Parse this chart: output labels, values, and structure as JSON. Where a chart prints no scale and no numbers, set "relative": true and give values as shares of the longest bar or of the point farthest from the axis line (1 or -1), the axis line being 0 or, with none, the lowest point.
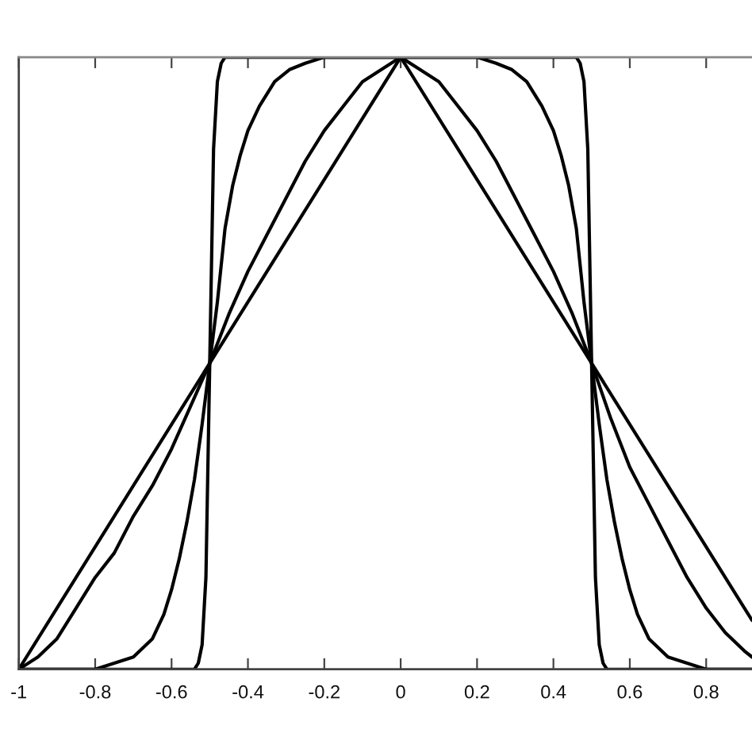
{
  "chart_data": {
    "type": "line",
    "relative": true,
    "xlim": [
      -1,
      0.92
    ],
    "xticks": [
      -1,
      -0.8,
      -0.6,
      -0.4,
      -0.2,
      0,
      0.2,
      0.4,
      0.6,
      0.8
    ],
    "grid": false,
    "line_style": "solid",
    "series": [
      {
        "color": "#000000",
        "x": [
          -1,
          -0.5,
          0,
          0.5,
          0.92
        ],
        "values": [
          0,
          0.5,
          1,
          0.5,
          0.08
        ]
      },
      {
        "color": "#000000",
        "x": [
          -1,
          -0.95,
          -0.9,
          -0.85,
          -0.8,
          -0.75,
          -0.7,
          -0.65,
          -0.6,
          -0.55,
          -0.5,
          -0.45,
          -0.4,
          -0.35,
          -0.3,
          -0.25,
          -0.2,
          -0.15,
          -0.1,
          -0.05,
          0,
          0.05,
          0.1,
          0.15,
          0.2,
          0.25,
          0.3,
          0.35,
          0.4,
          0.45,
          0.5,
          0.55,
          0.6,
          0.65,
          0.7,
          0.75,
          0.8,
          0.85,
          0.9,
          0.92
        ],
        "values": [
          0,
          0.02,
          0.05,
          0.1,
          0.15,
          0.19,
          0.25,
          0.3,
          0.36,
          0.43,
          0.5,
          0.58,
          0.65,
          0.71,
          0.77,
          0.83,
          0.88,
          0.92,
          0.96,
          0.98,
          1,
          0.98,
          0.96,
          0.92,
          0.88,
          0.83,
          0.77,
          0.71,
          0.65,
          0.58,
          0.5,
          0.41,
          0.33,
          0.27,
          0.21,
          0.15,
          0.1,
          0.06,
          0.03,
          0.02
        ]
      },
      {
        "color": "#000000",
        "x": [
          -1,
          -0.8,
          -0.75,
          -0.7,
          -0.65,
          -0.62,
          -0.6,
          -0.58,
          -0.56,
          -0.54,
          -0.52,
          -0.5,
          -0.48,
          -0.46,
          -0.44,
          -0.42,
          -0.4,
          -0.37,
          -0.33,
          -0.29,
          -0.25,
          -0.2,
          0.2,
          0.25,
          0.29,
          0.33,
          0.37,
          0.4,
          0.42,
          0.44,
          0.46,
          0.48,
          0.5,
          0.52,
          0.54,
          0.56,
          0.58,
          0.6,
          0.62,
          0.65,
          0.7,
          0.75,
          0.8,
          0.92
        ],
        "values": [
          0,
          0,
          0.01,
          0.02,
          0.05,
          0.09,
          0.13,
          0.18,
          0.24,
          0.31,
          0.4,
          0.5,
          0.6,
          0.72,
          0.79,
          0.84,
          0.88,
          0.92,
          0.96,
          0.98,
          0.99,
          1,
          1,
          0.99,
          0.98,
          0.96,
          0.92,
          0.88,
          0.84,
          0.79,
          0.72,
          0.6,
          0.5,
          0.4,
          0.31,
          0.24,
          0.18,
          0.13,
          0.09,
          0.05,
          0.02,
          0.01,
          0,
          0
        ]
      },
      {
        "color": "#000000",
        "x": [
          -1,
          -0.54,
          -0.53,
          -0.52,
          -0.51,
          -0.5,
          -0.49,
          -0.48,
          -0.47,
          -0.46,
          0.46,
          0.47,
          0.48,
          0.49,
          0.5,
          0.51,
          0.52,
          0.53,
          0.54,
          0.92
        ],
        "values": [
          0,
          0,
          0.01,
          0.04,
          0.15,
          0.5,
          0.85,
          0.96,
          0.99,
          1,
          1,
          0.99,
          0.96,
          0.85,
          0.5,
          0.15,
          0.04,
          0.01,
          0,
          0
        ]
      }
    ]
  }
}
